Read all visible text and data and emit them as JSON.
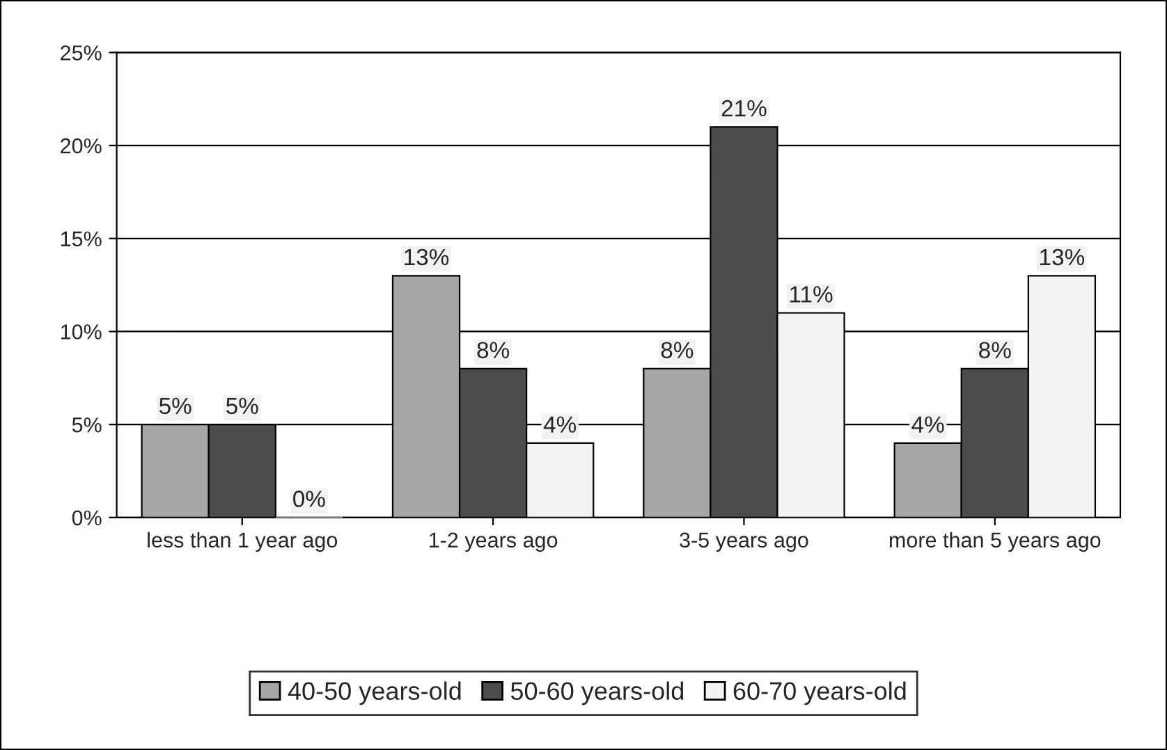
{
  "chart_data": {
    "type": "bar",
    "categories": [
      "less than 1 year ago",
      "1-2 years ago",
      "3-5 years ago",
      "more than 5 years ago"
    ],
    "series": [
      {
        "name": "40-50 years-old",
        "color": "#a6a6a6",
        "values": [
          5,
          13,
          8,
          4
        ],
        "value_labels": [
          "5%",
          "13%",
          "8%",
          "4%"
        ]
      },
      {
        "name": "50-60 years-old",
        "color": "#4d4d4d",
        "values": [
          5,
          8,
          21,
          8
        ],
        "value_labels": [
          "5%",
          "8%",
          "21%",
          "8%"
        ]
      },
      {
        "name": "60-70 years-old",
        "color": "#f2f2f2",
        "values": [
          0,
          4,
          11,
          13
        ],
        "value_labels": [
          "0%",
          "4%",
          "11%",
          "13%"
        ]
      }
    ],
    "ylim": [
      0,
      25
    ],
    "yticks": [
      {
        "value": 0,
        "label": "0%"
      },
      {
        "value": 5,
        "label": "5%"
      },
      {
        "value": 10,
        "label": "10%"
      },
      {
        "value": 15,
        "label": "15%"
      },
      {
        "value": 20,
        "label": "20%"
      },
      {
        "value": 25,
        "label": "25%"
      }
    ],
    "grid": "y",
    "legend": "bottom"
  }
}
